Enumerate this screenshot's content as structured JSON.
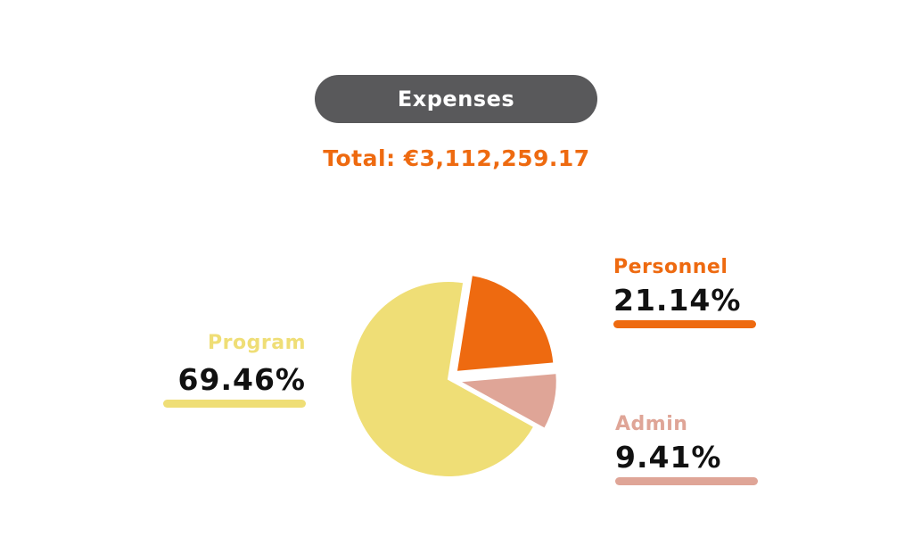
{
  "header": {
    "title": "Expenses",
    "total": "Total: €3,112,259.17"
  },
  "colors": {
    "title_bg": "#59595b",
    "total_text": "#ee6a10"
  },
  "chart_data": {
    "type": "pie",
    "title": "Expenses",
    "total": "Total: €3,112,259.17",
    "slices": [
      {
        "label": "Personnel",
        "value": 21.14,
        "display": "21.14%",
        "color": "#ee6a10"
      },
      {
        "label": "Admin",
        "value": 9.41,
        "display": "9.41%",
        "color": "#dfa597"
      },
      {
        "label": "Program",
        "value": 69.46,
        "display": "69.46%",
        "color": "#efde76"
      }
    ],
    "exploded_slices": [
      "Personnel",
      "Admin"
    ]
  }
}
